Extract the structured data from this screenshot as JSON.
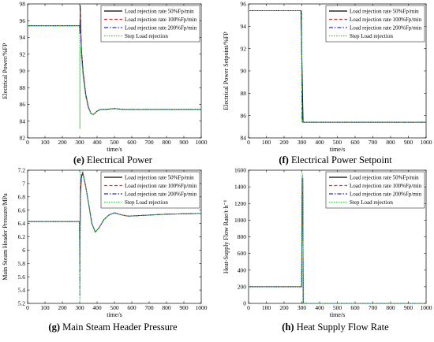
{
  "legend_labels": [
    "Load rejection rate 50%Fp/min",
    "Load rejection rate 100%Fp/min",
    "Load rejection rate 200%Fp/min",
    "Step Load rejection"
  ],
  "series_styles": [
    {
      "color": "#000000",
      "dash": ""
    },
    {
      "color": "#e8282a",
      "dash": "4,2.5"
    },
    {
      "color": "#1f2fd0",
      "dash": "5,2,1.5,2"
    },
    {
      "color": "#29d63b",
      "dash": "1.5,1.5"
    }
  ],
  "chart_data": [
    {
      "type": "line",
      "caption_letter": "(e)",
      "caption_text": "Electrical Power",
      "xlabel": "time/s",
      "ylabel": "Electrical Power/%FP",
      "xlim": [
        0,
        1000
      ],
      "ylim": [
        82,
        98
      ],
      "xticks": [
        0,
        100,
        200,
        300,
        400,
        500,
        600,
        700,
        800,
        900,
        1000
      ],
      "yticks": [
        82,
        84,
        86,
        88,
        90,
        92,
        94,
        96,
        98
      ],
      "legend_position": "top-right",
      "series": [
        {
          "name": "Load rejection rate 50%Fp/min",
          "x": [
            0,
            299,
            301,
            303,
            306,
            310,
            320,
            335,
            350,
            365,
            380,
            400,
            420,
            450,
            500,
            550,
            600,
            700,
            800,
            900,
            1000
          ],
          "y": [
            95.4,
            95.4,
            94.5,
            97.8,
            95.0,
            92.5,
            89.8,
            87.2,
            85.7,
            84.9,
            84.8,
            85.2,
            85.4,
            85.4,
            85.5,
            85.4,
            85.4,
            85.4,
            85.4,
            85.4,
            85.4
          ]
        },
        {
          "name": "Load rejection rate 100%Fp/min",
          "x": [
            0,
            299,
            301,
            303,
            306,
            310,
            320,
            335,
            350,
            365,
            380,
            400,
            420,
            450,
            500,
            550,
            600,
            700,
            800,
            900,
            1000
          ],
          "y": [
            95.4,
            95.4,
            94.6,
            97.2,
            94.8,
            92.3,
            89.7,
            87.1,
            85.7,
            84.9,
            84.8,
            85.2,
            85.4,
            85.4,
            85.5,
            85.4,
            85.4,
            85.4,
            85.4,
            85.4,
            85.4
          ]
        },
        {
          "name": "Load rejection rate 200%Fp/min",
          "x": [
            0,
            299,
            301,
            303,
            306,
            310,
            320,
            335,
            350,
            365,
            380,
            400,
            420,
            450,
            500,
            550,
            600,
            700,
            800,
            900,
            1000
          ],
          "y": [
            95.4,
            95.4,
            94.7,
            95.8,
            94.5,
            92.0,
            89.5,
            87.0,
            85.6,
            84.9,
            84.8,
            85.2,
            85.4,
            85.4,
            85.5,
            85.4,
            85.4,
            85.4,
            85.4,
            85.4,
            85.4
          ]
        },
        {
          "name": "Step Load rejection",
          "x": [
            0,
            299,
            301,
            303,
            306,
            310,
            320,
            335,
            350,
            365,
            380,
            400,
            420,
            450,
            500,
            550,
            600,
            700,
            800,
            900,
            1000
          ],
          "y": [
            95.4,
            95.4,
            83.1,
            92.0,
            93.0,
            91.5,
            89.2,
            86.9,
            85.6,
            84.9,
            84.8,
            85.2,
            85.4,
            85.4,
            85.5,
            85.4,
            85.4,
            85.4,
            85.4,
            85.4,
            85.4
          ]
        }
      ]
    },
    {
      "type": "line",
      "caption_letter": "(f)",
      "caption_text": "Electrical Power Setpoint",
      "xlabel": "time/s",
      "ylabel": "Electrical Power Setpoint/%FP",
      "xlim": [
        0,
        1000
      ],
      "ylim": [
        84,
        96
      ],
      "xticks": [
        0,
        100,
        200,
        300,
        400,
        500,
        600,
        700,
        800,
        900,
        1000
      ],
      "yticks": [
        84,
        86,
        88,
        90,
        92,
        94,
        96
      ],
      "legend_position": "top-right",
      "series": [
        {
          "name": "Load rejection rate 50%Fp/min",
          "x": [
            0,
            295,
            307,
            1000
          ],
          "y": [
            95.4,
            95.4,
            85.4,
            85.4
          ]
        },
        {
          "name": "Load rejection rate 100%Fp/min",
          "x": [
            0,
            297,
            303,
            1000
          ],
          "y": [
            95.4,
            95.4,
            85.4,
            85.4
          ]
        },
        {
          "name": "Load rejection rate 200%Fp/min",
          "x": [
            0,
            298,
            301,
            1000
          ],
          "y": [
            95.4,
            95.4,
            85.4,
            85.4
          ]
        },
        {
          "name": "Step Load rejection",
          "x": [
            0,
            299,
            300,
            1000
          ],
          "y": [
            95.4,
            95.4,
            85.4,
            85.4
          ]
        }
      ]
    },
    {
      "type": "line",
      "caption_letter": "(g)",
      "caption_text": "Main Steam Header Pressure",
      "xlabel": "time/s",
      "ylabel": "Main Steam Header Pressure/MPa",
      "xlim": [
        0,
        1000
      ],
      "ylim": [
        5.2,
        7.2
      ],
      "xticks": [
        0,
        100,
        200,
        300,
        400,
        500,
        600,
        700,
        800,
        900,
        1000
      ],
      "yticks": [
        5.2,
        5.4,
        5.6,
        5.8,
        6,
        6.2,
        6.4,
        6.6,
        6.8,
        7,
        7.2
      ],
      "legend_position": "top-right",
      "series": [
        {
          "name": "Load rejection rate 50%Fp/min",
          "x": [
            0,
            299,
            301,
            304,
            310,
            318,
            325,
            335,
            350,
            370,
            390,
            410,
            440,
            470,
            500,
            540,
            580,
            650,
            800,
            1000
          ],
          "y": [
            6.43,
            6.43,
            5.9,
            6.8,
            7.1,
            7.15,
            7.08,
            6.95,
            6.72,
            6.4,
            6.27,
            6.33,
            6.46,
            6.53,
            6.56,
            6.53,
            6.51,
            6.52,
            6.54,
            6.55
          ]
        },
        {
          "name": "Load rejection rate 100%Fp/min",
          "x": [
            0,
            299,
            301,
            304,
            310,
            318,
            325,
            335,
            350,
            370,
            390,
            410,
            440,
            470,
            500,
            540,
            580,
            650,
            800,
            1000
          ],
          "y": [
            6.43,
            6.43,
            5.7,
            6.9,
            7.12,
            7.16,
            7.08,
            6.95,
            6.72,
            6.4,
            6.27,
            6.33,
            6.46,
            6.53,
            6.56,
            6.53,
            6.51,
            6.52,
            6.54,
            6.55
          ]
        },
        {
          "name": "Load rejection rate 200%Fp/min",
          "x": [
            0,
            299,
            301,
            304,
            310,
            318,
            325,
            335,
            350,
            370,
            390,
            410,
            440,
            470,
            500,
            540,
            580,
            650,
            800,
            1000
          ],
          "y": [
            6.43,
            6.43,
            5.32,
            7.0,
            7.14,
            7.17,
            7.08,
            6.95,
            6.72,
            6.4,
            6.27,
            6.33,
            6.46,
            6.53,
            6.56,
            6.53,
            6.51,
            6.52,
            6.54,
            6.55
          ]
        },
        {
          "name": "Step Load rejection",
          "x": [
            0,
            299,
            301,
            304,
            310,
            318,
            325,
            335,
            350,
            370,
            390,
            410,
            440,
            470,
            500,
            540,
            580,
            650,
            800,
            1000
          ],
          "y": [
            6.43,
            6.43,
            5.25,
            7.15,
            7.18,
            7.18,
            7.08,
            6.95,
            6.72,
            6.4,
            6.27,
            6.33,
            6.46,
            6.53,
            6.56,
            6.53,
            6.51,
            6.52,
            6.54,
            6.55
          ]
        }
      ]
    },
    {
      "type": "line",
      "caption_letter": "(h)",
      "caption_text": "Heat Supply Flow Rate",
      "xlabel": "time/s",
      "ylabel": "Heat-Supply Flow Rate/t·h⁻¹",
      "xlim": [
        0,
        1000
      ],
      "ylim": [
        0,
        1600
      ],
      "xticks": [
        0,
        100,
        200,
        300,
        400,
        500,
        600,
        700,
        800,
        900,
        1000
      ],
      "yticks": [
        0,
        200,
        400,
        600,
        800,
        1000,
        1200,
        1400,
        1600
      ],
      "legend_position": "top-right",
      "series": [
        {
          "name": "Load rejection rate 50%Fp/min",
          "x": [
            0,
            299,
            302,
            305,
            308,
            1000
          ],
          "y": [
            200,
            200,
            1480,
            1480,
            0,
            0
          ]
        },
        {
          "name": "Load rejection rate 100%Fp/min",
          "x": [
            0,
            299,
            302,
            305,
            308,
            1000
          ],
          "y": [
            200,
            200,
            1510,
            1510,
            0,
            0
          ]
        },
        {
          "name": "Load rejection rate 200%Fp/min",
          "x": [
            0,
            299,
            302,
            305,
            308,
            1000
          ],
          "y": [
            200,
            200,
            1530,
            1530,
            0,
            0
          ]
        },
        {
          "name": "Step Load rejection",
          "x": [
            0,
            299,
            302,
            305,
            308,
            1000
          ],
          "y": [
            200,
            200,
            1560,
            1560,
            0,
            0
          ]
        }
      ]
    }
  ]
}
